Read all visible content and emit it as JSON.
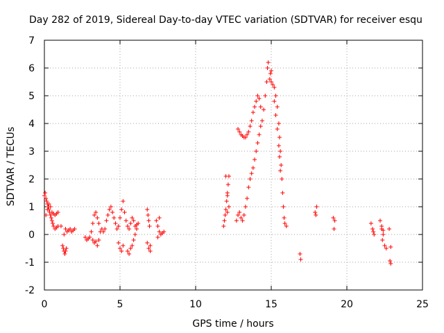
{
  "chart_data": {
    "type": "scatter",
    "title": "Day 282 of 2019, Sidereal Day-to-day VTEC variation (SDTVAR) for receiver esqu",
    "xlabel": "GPS time / hours",
    "ylabel": "SDTVAR / TECUs",
    "xlim": [
      0,
      25
    ],
    "ylim": [
      -2,
      7
    ],
    "x_ticks": [
      "0",
      "5",
      "10",
      "15",
      "20",
      "25"
    ],
    "y_ticks": [
      "-2",
      "-1",
      "0",
      "1",
      "2",
      "3",
      "4",
      "5",
      "6",
      "7"
    ],
    "grid": true,
    "marker": "+",
    "color": "#ff0000",
    "series": [
      {
        "name": "SDTVAR",
        "points": [
          [
            0.0,
            1.4
          ],
          [
            0.05,
            1.5
          ],
          [
            0.1,
            1.3
          ],
          [
            0.15,
            1.2
          ],
          [
            0.2,
            1.1
          ],
          [
            0.25,
            1.0
          ],
          [
            0.3,
            0.9
          ],
          [
            0.35,
            0.8
          ],
          [
            0.4,
            0.7
          ],
          [
            0.45,
            0.6
          ],
          [
            0.5,
            0.5
          ],
          [
            0.55,
            0.4
          ],
          [
            0.6,
            0.3
          ],
          [
            0.7,
            0.2
          ],
          [
            0.8,
            0.25
          ],
          [
            0.9,
            0.3
          ],
          [
            0.1,
            0.7
          ],
          [
            0.2,
            0.9
          ],
          [
            0.3,
            1.1
          ],
          [
            0.4,
            1.0
          ],
          [
            0.5,
            0.8
          ],
          [
            0.6,
            0.75
          ],
          [
            0.7,
            0.7
          ],
          [
            0.8,
            0.75
          ],
          [
            0.9,
            0.8
          ],
          [
            1.1,
            0.3
          ],
          [
            1.2,
            -0.4
          ],
          [
            1.25,
            -0.5
          ],
          [
            1.3,
            -0.6
          ],
          [
            1.35,
            -0.7
          ],
          [
            1.4,
            -0.6
          ],
          [
            1.45,
            -0.5
          ],
          [
            1.3,
            0.0
          ],
          [
            1.4,
            0.2
          ],
          [
            1.5,
            0.1
          ],
          [
            1.6,
            0.15
          ],
          [
            1.7,
            0.2
          ],
          [
            1.8,
            0.1
          ],
          [
            1.9,
            0.15
          ],
          [
            2.0,
            0.2
          ],
          [
            2.7,
            -0.1
          ],
          [
            2.8,
            -0.2
          ],
          [
            2.9,
            -0.15
          ],
          [
            3.0,
            -0.1
          ],
          [
            3.1,
            0.1
          ],
          [
            3.2,
            0.4
          ],
          [
            3.3,
            0.7
          ],
          [
            3.4,
            0.8
          ],
          [
            3.5,
            0.6
          ],
          [
            3.6,
            0.4
          ],
          [
            3.2,
            -0.2
          ],
          [
            3.3,
            -0.3
          ],
          [
            3.4,
            -0.25
          ],
          [
            3.5,
            -0.4
          ],
          [
            3.6,
            -0.2
          ],
          [
            3.7,
            0.1
          ],
          [
            3.8,
            0.2
          ],
          [
            3.9,
            0.1
          ],
          [
            4.0,
            0.2
          ],
          [
            4.1,
            0.5
          ],
          [
            4.2,
            0.7
          ],
          [
            4.3,
            0.9
          ],
          [
            4.4,
            1.0
          ],
          [
            4.5,
            0.8
          ],
          [
            4.6,
            0.6
          ],
          [
            4.7,
            0.4
          ],
          [
            4.8,
            0.2
          ],
          [
            4.9,
            0.3
          ],
          [
            5.0,
            0.6
          ],
          [
            5.1,
            0.9
          ],
          [
            5.2,
            1.2
          ],
          [
            5.3,
            0.8
          ],
          [
            5.4,
            0.5
          ],
          [
            5.5,
            0.3
          ],
          [
            4.9,
            -0.3
          ],
          [
            5.0,
            -0.5
          ],
          [
            5.1,
            -0.6
          ],
          [
            5.2,
            -0.4
          ],
          [
            5.5,
            -0.6
          ],
          [
            5.6,
            -0.7
          ],
          [
            5.7,
            -0.5
          ],
          [
            5.8,
            -0.4
          ],
          [
            5.9,
            -0.2
          ],
          [
            6.0,
            0.0
          ],
          [
            6.1,
            0.2
          ],
          [
            6.2,
            0.4
          ],
          [
            5.6,
            0.2
          ],
          [
            5.7,
            0.4
          ],
          [
            5.8,
            0.6
          ],
          [
            5.9,
            0.5
          ],
          [
            6.0,
            0.3
          ],
          [
            6.1,
            0.35
          ],
          [
            6.8,
            0.9
          ],
          [
            6.85,
            0.7
          ],
          [
            6.9,
            0.5
          ],
          [
            6.95,
            0.3
          ],
          [
            6.8,
            -0.3
          ],
          [
            6.9,
            -0.5
          ],
          [
            7.0,
            -0.6
          ],
          [
            7.0,
            -0.4
          ],
          [
            7.4,
            0.5
          ],
          [
            7.5,
            0.3
          ],
          [
            7.6,
            0.1
          ],
          [
            7.7,
            0.0
          ],
          [
            7.8,
            0.05
          ],
          [
            7.9,
            0.1
          ],
          [
            7.5,
            -0.1
          ],
          [
            7.6,
            0.6
          ],
          [
            11.85,
            0.3
          ],
          [
            11.9,
            0.5
          ],
          [
            11.95,
            0.7
          ],
          [
            12.0,
            0.9
          ],
          [
            12.05,
            1.2
          ],
          [
            12.1,
            1.5
          ],
          [
            12.15,
            1.8
          ],
          [
            12.2,
            2.1
          ],
          [
            12.0,
            2.1
          ],
          [
            12.1,
            1.4
          ],
          [
            12.2,
            1.0
          ],
          [
            12.1,
            0.8
          ],
          [
            12.7,
            0.5
          ],
          [
            12.8,
            0.7
          ],
          [
            12.9,
            0.8
          ],
          [
            13.0,
            0.6
          ],
          [
            13.1,
            0.5
          ],
          [
            13.2,
            0.7
          ],
          [
            13.3,
            1.0
          ],
          [
            13.4,
            1.3
          ],
          [
            13.5,
            1.7
          ],
          [
            13.6,
            2.0
          ],
          [
            13.7,
            2.2
          ],
          [
            13.8,
            2.4
          ],
          [
            13.9,
            2.7
          ],
          [
            14.0,
            3.0
          ],
          [
            14.1,
            3.3
          ],
          [
            14.2,
            3.6
          ],
          [
            14.3,
            3.9
          ],
          [
            14.4,
            4.1
          ],
          [
            14.5,
            4.5
          ],
          [
            14.6,
            5.0
          ],
          [
            14.7,
            5.5
          ],
          [
            14.75,
            6.0
          ],
          [
            14.8,
            6.2
          ],
          [
            12.8,
            3.8
          ],
          [
            12.9,
            3.7
          ],
          [
            13.0,
            3.6
          ],
          [
            13.1,
            3.55
          ],
          [
            13.2,
            3.5
          ],
          [
            13.3,
            3.5
          ],
          [
            13.4,
            3.6
          ],
          [
            13.5,
            3.7
          ],
          [
            13.6,
            3.9
          ],
          [
            13.7,
            4.1
          ],
          [
            13.8,
            4.4
          ],
          [
            13.9,
            4.6
          ],
          [
            14.0,
            4.8
          ],
          [
            14.1,
            5.0
          ],
          [
            14.2,
            4.9
          ],
          [
            14.3,
            4.6
          ],
          [
            14.9,
            5.6
          ],
          [
            15.0,
            5.5
          ],
          [
            15.1,
            5.4
          ],
          [
            15.2,
            5.3
          ],
          [
            15.3,
            5.0
          ],
          [
            15.4,
            4.6
          ],
          [
            15.5,
            4.0
          ],
          [
            15.55,
            3.5
          ],
          [
            15.6,
            3.0
          ],
          [
            15.65,
            2.5
          ],
          [
            15.7,
            2.0
          ],
          [
            15.75,
            1.5
          ],
          [
            15.8,
            1.0
          ],
          [
            15.85,
            0.6
          ],
          [
            15.9,
            0.4
          ],
          [
            16.0,
            0.3
          ],
          [
            14.95,
            5.8
          ],
          [
            15.0,
            5.9
          ],
          [
            15.2,
            4.8
          ],
          [
            15.3,
            4.3
          ],
          [
            15.4,
            3.8
          ],
          [
            15.5,
            3.2
          ],
          [
            15.55,
            2.8
          ],
          [
            15.6,
            2.3
          ],
          [
            16.9,
            -0.7
          ],
          [
            16.95,
            -0.9
          ],
          [
            17.9,
            0.8
          ],
          [
            18.0,
            1.0
          ],
          [
            17.95,
            0.7
          ],
          [
            19.1,
            0.6
          ],
          [
            19.2,
            0.5
          ],
          [
            19.15,
            0.2
          ],
          [
            21.6,
            0.4
          ],
          [
            21.7,
            0.2
          ],
          [
            21.8,
            0.0
          ],
          [
            21.75,
            0.1
          ],
          [
            22.2,
            0.5
          ],
          [
            22.3,
            0.3
          ],
          [
            22.4,
            0.0
          ],
          [
            22.35,
            -0.2
          ],
          [
            22.5,
            -0.4
          ],
          [
            22.6,
            -0.5
          ],
          [
            22.3,
            0.2
          ],
          [
            22.4,
            0.15
          ],
          [
            22.8,
            0.2
          ],
          [
            22.9,
            -0.45
          ],
          [
            22.85,
            -0.95
          ],
          [
            22.9,
            -1.05
          ]
        ]
      }
    ]
  }
}
